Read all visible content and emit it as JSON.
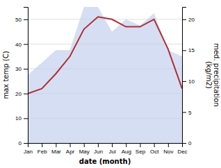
{
  "chart_data": {
    "type": "line",
    "xlabel": "date (month)",
    "ylabel": "max temp (C)",
    "y2label": "med. precipitation\n(kg/m2)",
    "categories": [
      "Jan",
      "Feb",
      "Mar",
      "Apr",
      "May",
      "Jun",
      "Jul",
      "Aug",
      "Sep",
      "Oct",
      "Nov",
      "Dec"
    ],
    "series": [
      {
        "type": "area",
        "color": "#c0ccee",
        "axis": "y2",
        "values": [
          11,
          13,
          15,
          15,
          22,
          22,
          18,
          20,
          19,
          21,
          15,
          14
        ]
      },
      {
        "type": "line",
        "color": "#b03030",
        "values": [
          20,
          22,
          28,
          35,
          46,
          51,
          50,
          47,
          47,
          50,
          38,
          22
        ]
      }
    ],
    "ylim": [
      0,
      55
    ],
    "yticks": [
      0,
      10,
      20,
      30,
      40,
      50
    ],
    "y2lim": [
      0,
      22
    ],
    "y2ticks": [
      0,
      5,
      10,
      15,
      20
    ],
    "grid": true
  }
}
